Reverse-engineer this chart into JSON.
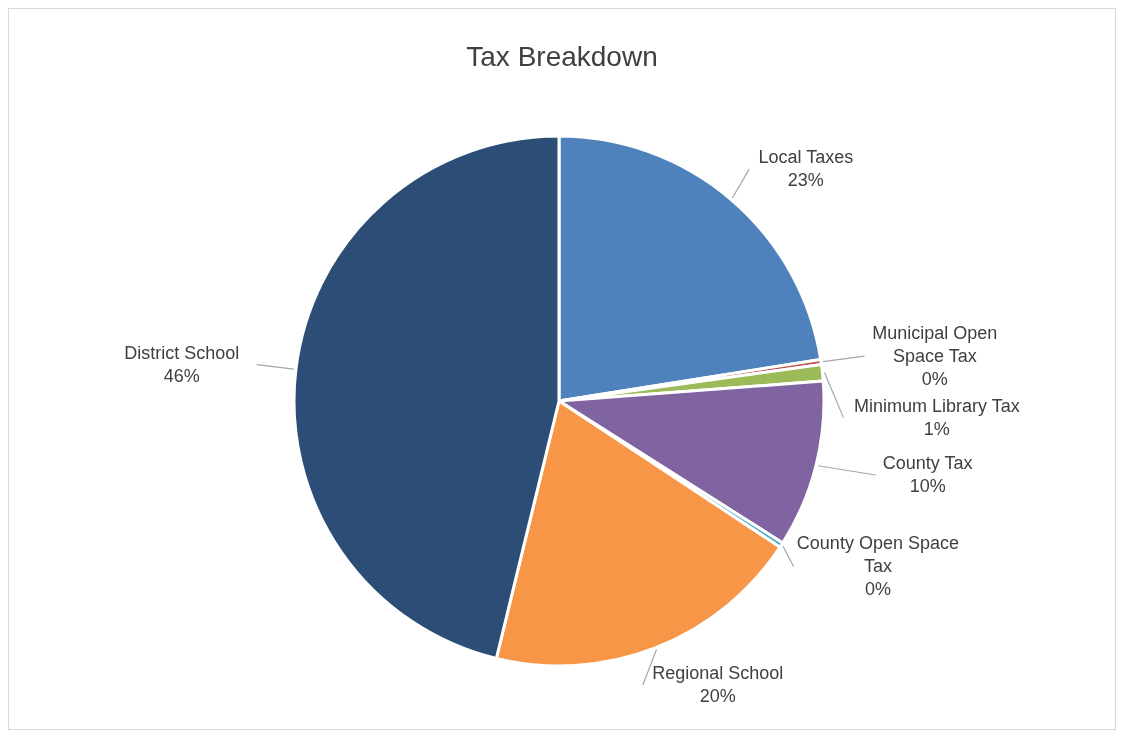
{
  "chart_data": {
    "type": "pie",
    "title": "Tax Breakdown",
    "categories": [
      "Local Taxes",
      "Municipal Open Space Tax",
      "Minimum Library Tax",
      "County Tax",
      "County Open Space Tax",
      "Regional School",
      "District School"
    ],
    "values": [
      22.5,
      0.3,
      1.0,
      10.2,
      0.3,
      19.5,
      46.2
    ],
    "colors": [
      "#4f81bd",
      "#c0504d",
      "#9bbb59",
      "#8064a2",
      "#4bacc6",
      "#f79646",
      "#2c4d75"
    ],
    "value_labels": [
      "23%",
      "0%",
      "1%",
      "10%",
      "0%",
      "20%",
      "46%"
    ]
  }
}
